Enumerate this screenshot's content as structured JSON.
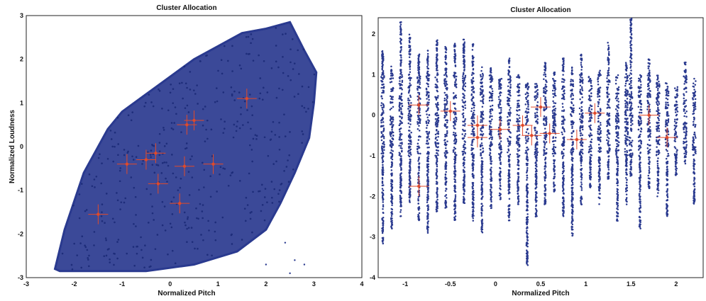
{
  "figure": {
    "colors": {
      "points": "#2a3a8f",
      "cluster_markers": "#e04a2a",
      "frame": "#222222",
      "background": "#ffffff"
    }
  },
  "chart_data": [
    {
      "type": "scatter",
      "title": "Cluster Allocation",
      "xlabel": "Normalized Pitch",
      "ylabel": "Normalized Loudness",
      "xlim": [
        -3,
        4
      ],
      "ylim": [
        -3,
        3
      ],
      "x_ticks": [
        -3,
        -2,
        -1,
        0,
        1,
        2,
        3,
        4
      ],
      "y_ticks": [
        -3,
        -2,
        -1,
        0,
        1,
        2,
        3
      ],
      "grid": false,
      "legend": "none",
      "series": [
        {
          "role": "data points",
          "outline": [
            [
              -2.4,
              -2.8
            ],
            [
              -2.2,
              -1.9
            ],
            [
              -1.8,
              -0.6
            ],
            [
              -1.3,
              0.4
            ],
            [
              -1.0,
              0.8
            ],
            [
              -0.5,
              1.2
            ],
            [
              0.0,
              1.6
            ],
            [
              0.5,
              2.0
            ],
            [
              1.0,
              2.3
            ],
            [
              1.5,
              2.6
            ],
            [
              2.0,
              2.7
            ],
            [
              2.5,
              2.85
            ],
            [
              2.8,
              2.2
            ],
            [
              3.05,
              1.7
            ],
            [
              3.0,
              1.0
            ],
            [
              2.9,
              0.2
            ],
            [
              2.6,
              -0.6
            ],
            [
              2.3,
              -1.3
            ],
            [
              2.0,
              -1.9
            ],
            [
              1.4,
              -2.4
            ],
            [
              0.5,
              -2.7
            ],
            [
              -0.5,
              -2.85
            ],
            [
              -1.5,
              -2.85
            ],
            [
              -2.3,
              -2.85
            ]
          ],
          "outliers": [
            [
              2.5,
              -2.9
            ],
            [
              2.8,
              -2.7
            ],
            [
              2.0,
              -2.7
            ],
            [
              2.4,
              -2.2
            ],
            [
              2.6,
              -2.6
            ]
          ]
        },
        {
          "role": "cluster centers",
          "points": [
            [
              -1.5,
              -1.55
            ],
            [
              -0.9,
              -0.4
            ],
            [
              -0.5,
              -0.3
            ],
            [
              -0.3,
              -0.15
            ],
            [
              -0.25,
              -0.85
            ],
            [
              0.3,
              -0.45
            ],
            [
              0.35,
              0.5
            ],
            [
              0.5,
              0.6
            ],
            [
              1.6,
              1.1
            ],
            [
              0.9,
              -0.4
            ],
            [
              0.2,
              -1.3
            ]
          ]
        }
      ]
    },
    {
      "type": "scatter",
      "title": "Cluster Allocation",
      "xlabel": "Normalized Pitch",
      "ylabel": "",
      "xlim": [
        -1.3,
        2.3
      ],
      "ylim": [
        -4,
        2.4
      ],
      "x_ticks": [
        -1,
        -0.5,
        0,
        0.5,
        1,
        1.5,
        2
      ],
      "y_ticks": [
        -4,
        -3,
        -2,
        -1,
        0,
        1,
        2
      ],
      "grid": false,
      "legend": "none",
      "series": [
        {
          "role": "data point stripes",
          "stripes": [
            [
              -1.25,
              -3.2,
              1.6
            ],
            [
              -1.15,
              -2.8,
              1.2
            ],
            [
              -1.05,
              -2.5,
              2.3
            ],
            [
              -0.95,
              -2.2,
              2.0
            ],
            [
              -0.85,
              -2.6,
              1.5
            ],
            [
              -0.75,
              -2.9,
              1.6
            ],
            [
              -0.65,
              -2.4,
              1.9
            ],
            [
              -0.55,
              -2.3,
              1.7
            ],
            [
              -0.45,
              -2.6,
              1.8
            ],
            [
              -0.35,
              -2.2,
              1.9
            ],
            [
              -0.25,
              -2.6,
              1.8
            ],
            [
              -0.15,
              -2.9,
              1.2
            ],
            [
              -0.05,
              -2.3,
              1.2
            ],
            [
              0.05,
              -2.1,
              0.9
            ],
            [
              0.15,
              -2.6,
              1.4
            ],
            [
              0.25,
              -2.2,
              1.0
            ],
            [
              0.35,
              -3.7,
              0.8
            ],
            [
              0.45,
              -2.5,
              0.8
            ],
            [
              0.55,
              -2.2,
              1.3
            ],
            [
              0.65,
              -1.9,
              1.1
            ],
            [
              0.75,
              -2.5,
              1.4
            ],
            [
              0.85,
              -3.0,
              1.2
            ],
            [
              0.95,
              -2.2,
              1.5
            ],
            [
              1.05,
              -1.8,
              1.0
            ],
            [
              1.15,
              -2.2,
              1.1
            ],
            [
              1.25,
              -1.6,
              1.8
            ],
            [
              1.35,
              -2.6,
              1.0
            ],
            [
              1.45,
              -2.2,
              1.3
            ],
            [
              1.5,
              -1.5,
              2.4
            ],
            [
              1.6,
              -2.8,
              1.0
            ],
            [
              1.7,
              -1.8,
              1.4
            ],
            [
              1.8,
              -2.0,
              1.0
            ],
            [
              1.9,
              -2.5,
              0.8
            ],
            [
              2.0,
              -1.5,
              0.7
            ],
            [
              2.1,
              -1.2,
              1.3
            ],
            [
              2.2,
              -2.2,
              0.9
            ]
          ]
        },
        {
          "role": "cluster centers",
          "points": [
            [
              -0.85,
              -1.75
            ],
            [
              -0.85,
              0.25
            ],
            [
              -0.5,
              0.1
            ],
            [
              -0.2,
              -0.25
            ],
            [
              -0.2,
              -0.55
            ],
            [
              0.05,
              -0.35
            ],
            [
              0.3,
              -0.25
            ],
            [
              0.4,
              -0.5
            ],
            [
              0.5,
              0.2
            ],
            [
              0.6,
              -0.45
            ],
            [
              0.9,
              -0.6
            ],
            [
              1.1,
              0.05
            ],
            [
              1.7,
              0.0
            ],
            [
              1.9,
              -0.55
            ]
          ]
        }
      ]
    }
  ]
}
